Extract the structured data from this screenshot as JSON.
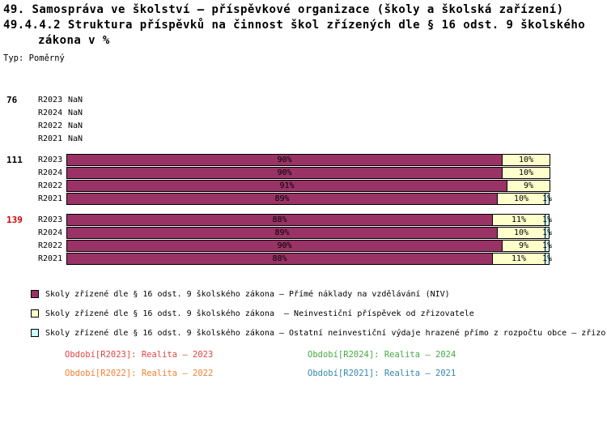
{
  "title": {
    "line1": "49. Samospráva ve školství – příspěvkové organizace (školy a školská zařízení)",
    "line2": "49.4.4.2 Struktura příspěvků na činnost škol zřízených dle § 16 odst. 9 školského",
    "line3": "zákona v %",
    "type_label": "Typ: Poměrný"
  },
  "colors": {
    "niv": "#993366",
    "contrib": "#FFFFCC",
    "other": "#CCFFFF",
    "group_highlight": "#CC0000"
  },
  "chart_data": {
    "type": "bar",
    "orientation": "horizontal",
    "stacked": true,
    "unit": "%",
    "xlim": [
      0,
      100
    ],
    "grid": false,
    "legend_position": "bottom",
    "series_names": {
      "niv": "Přímé náklady na vzdělávání (NIV)",
      "contrib": "Neinvestiční příspěvek od zřizovatele",
      "other": "Ostatní neinvestiční výdaje hrazené přímo z rozpočtu obce"
    },
    "groups": [
      {
        "id": "76",
        "highlight": false,
        "rows": [
          {
            "label": "R2023",
            "nan": true,
            "nan_text": "NaN",
            "segments": []
          },
          {
            "label": "R2024",
            "nan": true,
            "nan_text": "NaN",
            "segments": []
          },
          {
            "label": "R2022",
            "nan": true,
            "nan_text": "NaN",
            "segments": []
          },
          {
            "label": "R2021",
            "nan": true,
            "nan_text": "NaN",
            "segments": []
          }
        ]
      },
      {
        "id": "111",
        "highlight": false,
        "rows": [
          {
            "label": "R2023",
            "nan": false,
            "segments": [
              {
                "series": "niv",
                "value": 90,
                "label": "90%"
              },
              {
                "series": "contrib",
                "value": 10,
                "label": "10%"
              }
            ]
          },
          {
            "label": "R2024",
            "nan": false,
            "segments": [
              {
                "series": "niv",
                "value": 90,
                "label": "90%"
              },
              {
                "series": "contrib",
                "value": 10,
                "label": "10%"
              }
            ]
          },
          {
            "label": "R2022",
            "nan": false,
            "segments": [
              {
                "series": "niv",
                "value": 91,
                "label": "91%"
              },
              {
                "series": "contrib",
                "value": 9,
                "label": "9%"
              }
            ]
          },
          {
            "label": "R2021",
            "nan": false,
            "segments": [
              {
                "series": "niv",
                "value": 89,
                "label": "89%"
              },
              {
                "series": "contrib",
                "value": 10,
                "label": "10%"
              },
              {
                "series": "other",
                "value": 1,
                "label": "1%"
              }
            ]
          }
        ]
      },
      {
        "id": "139",
        "highlight": true,
        "rows": [
          {
            "label": "R2023",
            "nan": false,
            "segments": [
              {
                "series": "niv",
                "value": 88,
                "label": "88%"
              },
              {
                "series": "contrib",
                "value": 11,
                "label": "11%"
              },
              {
                "series": "other",
                "value": 1,
                "label": "1%"
              }
            ]
          },
          {
            "label": "R2024",
            "nan": false,
            "segments": [
              {
                "series": "niv",
                "value": 89,
                "label": "89%"
              },
              {
                "series": "contrib",
                "value": 10,
                "label": "10%"
              },
              {
                "series": "other",
                "value": 1,
                "label": "1%"
              }
            ]
          },
          {
            "label": "R2022",
            "nan": false,
            "segments": [
              {
                "series": "niv",
                "value": 90,
                "label": "90%"
              },
              {
                "series": "contrib",
                "value": 9,
                "label": "9%"
              },
              {
                "series": "other",
                "value": 1,
                "label": "1%"
              }
            ]
          },
          {
            "label": "R2021",
            "nan": false,
            "segments": [
              {
                "series": "niv",
                "value": 88,
                "label": "88%"
              },
              {
                "series": "contrib",
                "value": 11,
                "label": "11%"
              },
              {
                "series": "other",
                "value": 1,
                "label": "1%"
              }
            ]
          }
        ]
      }
    ],
    "legend": [
      {
        "series": "niv",
        "label": "Školy zřízené dle § 16 odst. 9 školského zákona – Přímé náklady na vzdělávání (NIV)"
      },
      {
        "series": "contrib",
        "label": "Školy zřízené dle § 16 odst. 9 školského zákona  – Neinvestiční příspěvek od zřizovatele"
      },
      {
        "series": "other",
        "label": "Školy zřízené dle § 16 odst. 9 školského zákona – Ostatní neinvestiční výdaje hrazené přímo z rozpočtu obce – zřizo"
      }
    ],
    "periods": [
      {
        "label": "Období[R2023]: Realita – 2023",
        "color": "#E04444"
      },
      {
        "label": "Období[R2024]: Realita – 2024",
        "color": "#44AA44"
      },
      {
        "label": "Období[R2022]: Realita – 2022",
        "color": "#F08030"
      },
      {
        "label": "Období[R2021]: Realita – 2021",
        "color": "#3388AA"
      }
    ]
  }
}
